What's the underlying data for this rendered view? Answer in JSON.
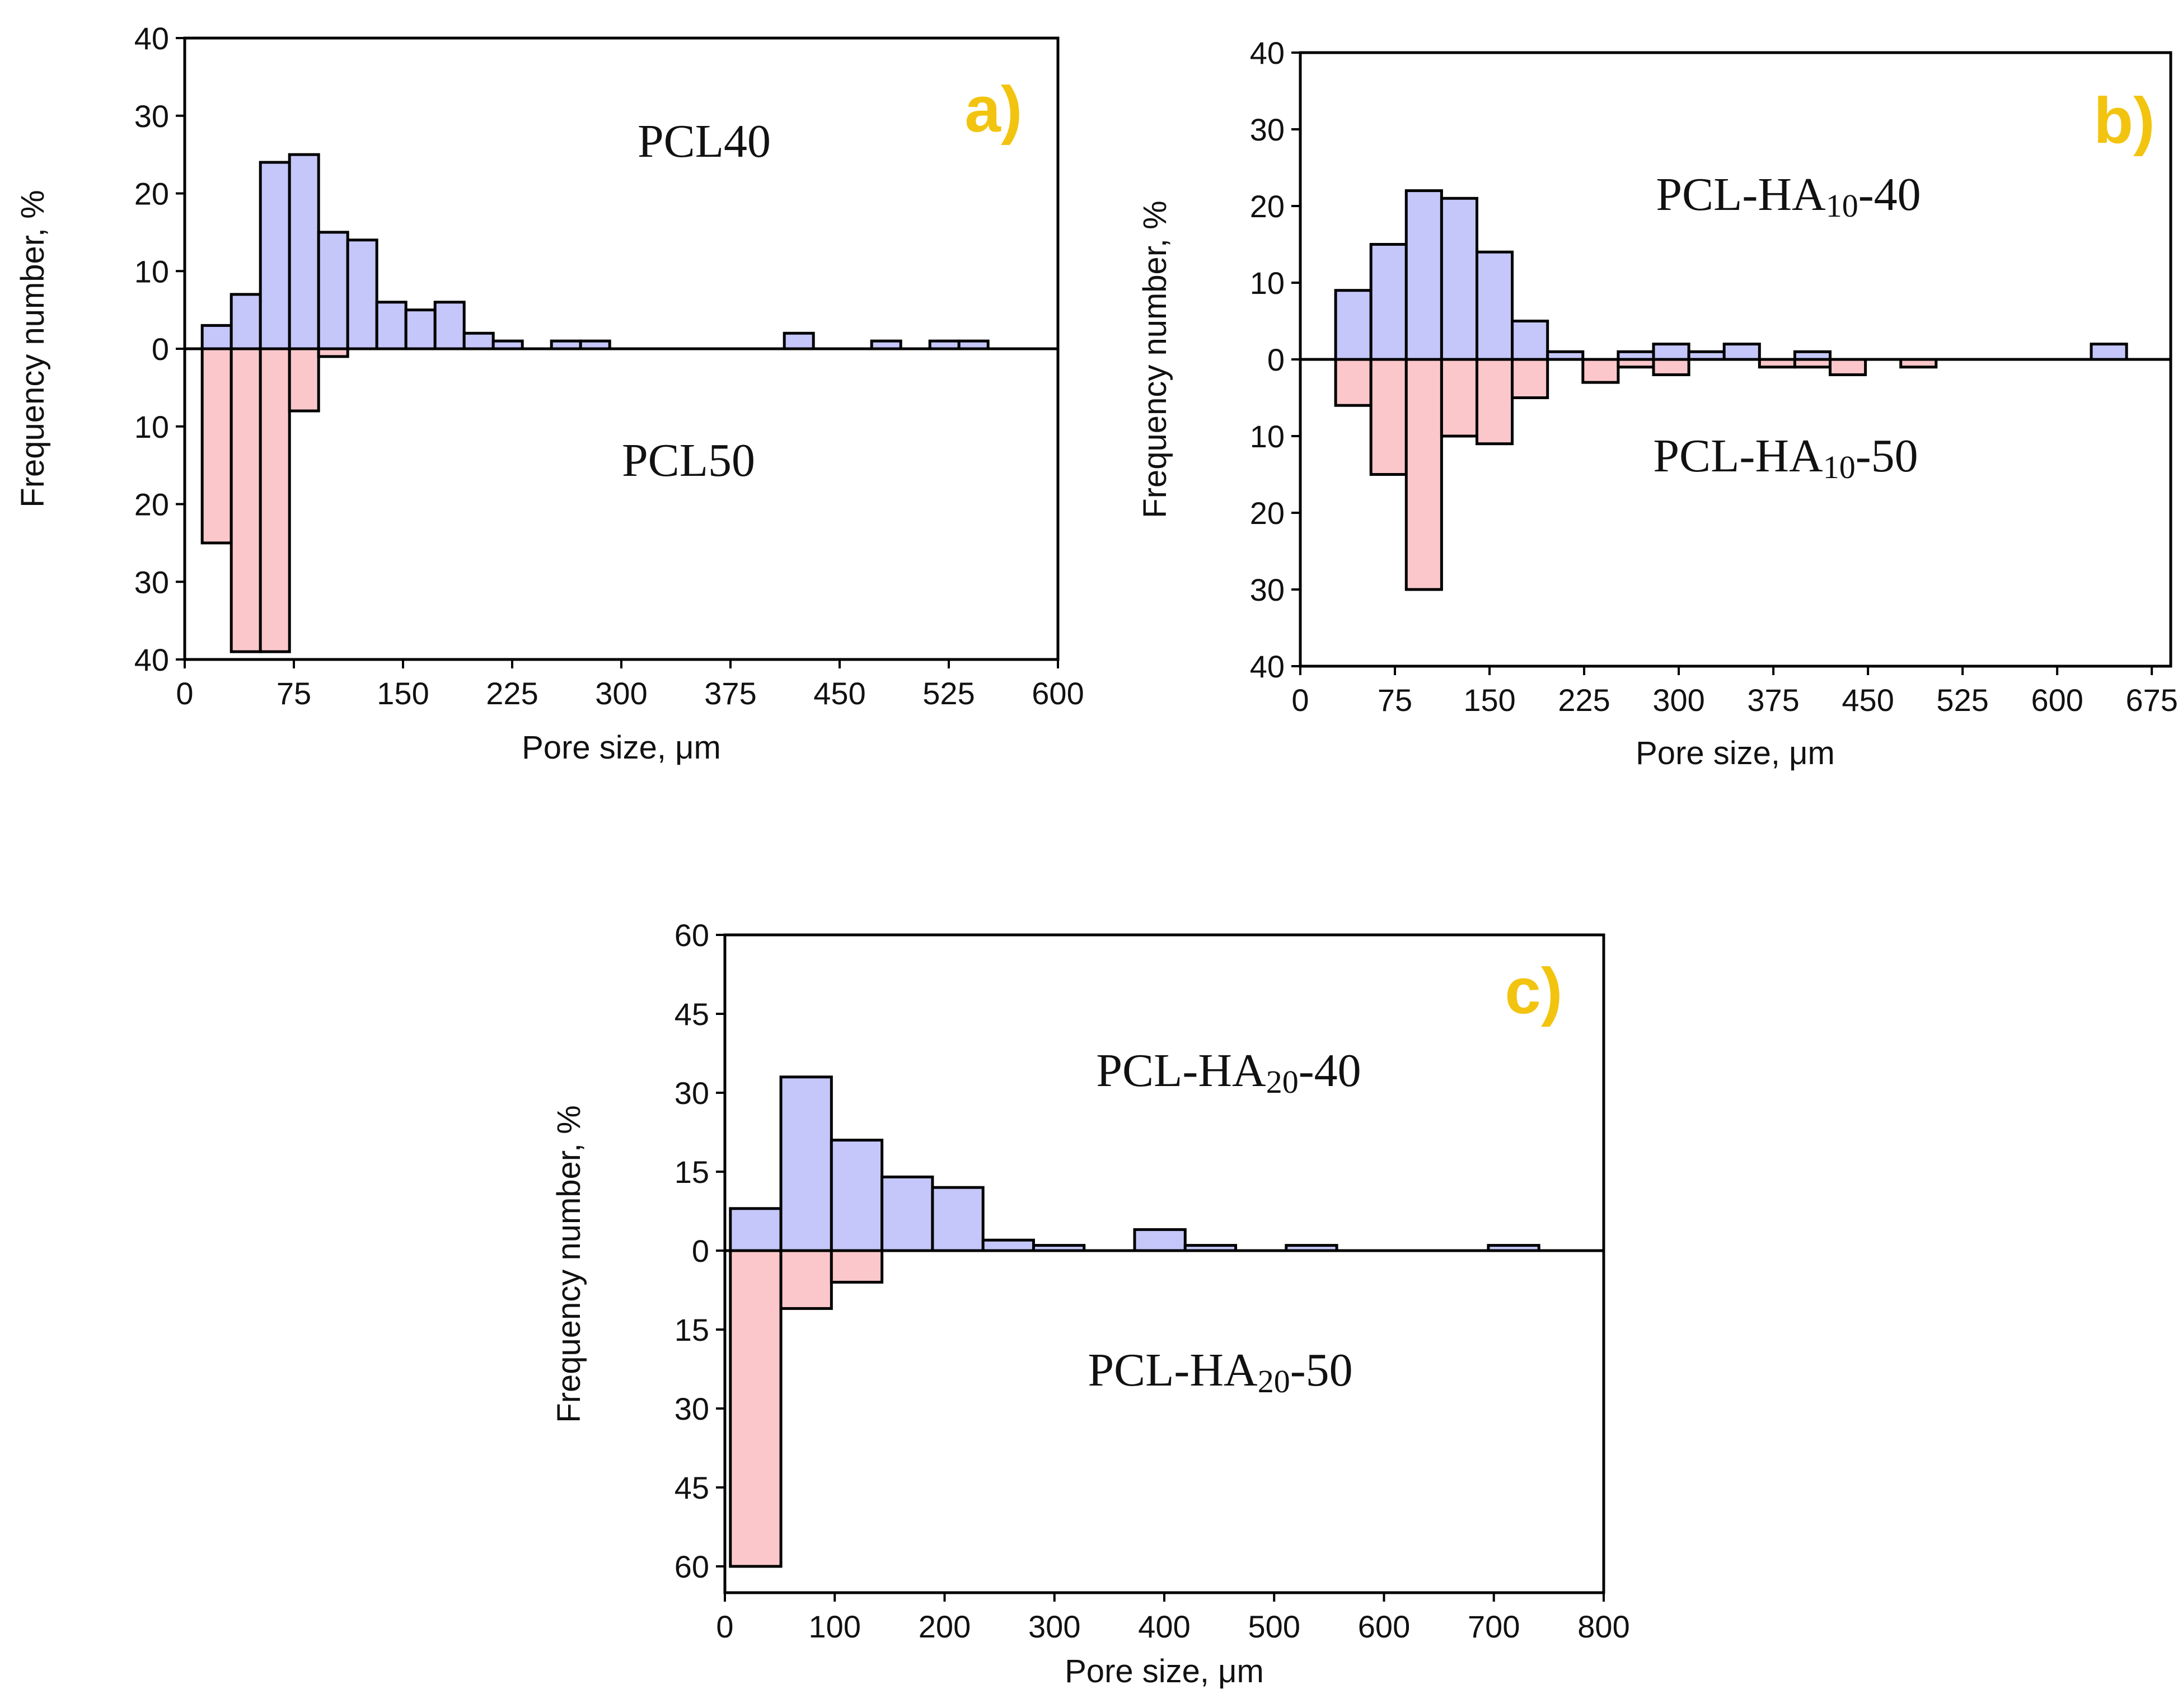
{
  "chart_data": [
    {
      "type": "bar",
      "panel_label": "a)",
      "title": "",
      "xlabel": "Pore size, μm",
      "ylabel": "Frequency number, %",
      "xlim": [
        0,
        600
      ],
      "ylim": [
        -40,
        40
      ],
      "x_ticks": [
        "0",
        "75",
        "150",
        "225",
        "300",
        "375",
        "450",
        "525",
        "600"
      ],
      "y_ticks_up": [
        "40",
        "30",
        "20",
        "10",
        "0"
      ],
      "y_ticks_down": [
        "10",
        "20",
        "30",
        "40"
      ],
      "bin_width": 20,
      "upper_series": {
        "name": "PCL40",
        "label_parts": [
          "PCL40"
        ],
        "color": "#c5c7fa",
        "bins": [
          {
            "x0": 12,
            "value": 3
          },
          {
            "x0": 32,
            "value": 7
          },
          {
            "x0": 52,
            "value": 24
          },
          {
            "x0": 72,
            "value": 25
          },
          {
            "x0": 92,
            "value": 15
          },
          {
            "x0": 112,
            "value": 14
          },
          {
            "x0": 132,
            "value": 6
          },
          {
            "x0": 152,
            "value": 5
          },
          {
            "x0": 172,
            "value": 6
          },
          {
            "x0": 192,
            "value": 2
          },
          {
            "x0": 212,
            "value": 1
          },
          {
            "x0": 252,
            "value": 1
          },
          {
            "x0": 272,
            "value": 1
          },
          {
            "x0": 412,
            "value": 2
          },
          {
            "x0": 472,
            "value": 1
          },
          {
            "x0": 512,
            "value": 1
          },
          {
            "x0": 532,
            "value": 1
          }
        ]
      },
      "lower_series": {
        "name": "PCL50",
        "label_parts": [
          "PCL50"
        ],
        "color": "#fbc7ca",
        "bins": [
          {
            "x0": 12,
            "value": 25
          },
          {
            "x0": 32,
            "value": 39
          },
          {
            "x0": 52,
            "value": 39
          },
          {
            "x0": 72,
            "value": 8
          },
          {
            "x0": 92,
            "value": 1
          }
        ]
      }
    },
    {
      "type": "bar",
      "panel_label": "b)",
      "title": "",
      "xlabel": "Pore size, μm",
      "ylabel": "Frequency number, %",
      "xlim": [
        0,
        690
      ],
      "ylim": [
        -40,
        40
      ],
      "x_ticks": [
        "0",
        "75",
        "150",
        "225",
        "300",
        "375",
        "450",
        "525",
        "600",
        "675"
      ],
      "y_ticks_up": [
        "40",
        "30",
        "20",
        "10",
        "0"
      ],
      "y_ticks_down": [
        "10",
        "20",
        "30",
        "40"
      ],
      "bin_width": 28,
      "upper_series": {
        "name": "PCL-HA10-40",
        "label_parts": [
          "PCL-HA",
          "10",
          "-40"
        ],
        "color": "#c5c7fa",
        "bins": [
          {
            "x0": 28,
            "value": 9
          },
          {
            "x0": 56,
            "value": 15
          },
          {
            "x0": 84,
            "value": 22
          },
          {
            "x0": 112,
            "value": 21
          },
          {
            "x0": 140,
            "value": 14
          },
          {
            "x0": 168,
            "value": 5
          },
          {
            "x0": 196,
            "value": 1
          },
          {
            "x0": 252,
            "value": 1
          },
          {
            "x0": 280,
            "value": 2
          },
          {
            "x0": 308,
            "value": 1
          },
          {
            "x0": 336,
            "value": 2
          },
          {
            "x0": 392,
            "value": 1
          },
          {
            "x0": 627,
            "value": 2
          }
        ]
      },
      "lower_series": {
        "name": "PCL-HA10-50",
        "label_parts": [
          "PCL-HA",
          "10",
          "-50"
        ],
        "color": "#fbc7ca",
        "bins": [
          {
            "x0": 28,
            "value": 6
          },
          {
            "x0": 56,
            "value": 15
          },
          {
            "x0": 84,
            "value": 30
          },
          {
            "x0": 112,
            "value": 10
          },
          {
            "x0": 140,
            "value": 11
          },
          {
            "x0": 168,
            "value": 5
          },
          {
            "x0": 224,
            "value": 3
          },
          {
            "x0": 252,
            "value": 1
          },
          {
            "x0": 280,
            "value": 2
          },
          {
            "x0": 364,
            "value": 1
          },
          {
            "x0": 392,
            "value": 1
          },
          {
            "x0": 420,
            "value": 2
          },
          {
            "x0": 476,
            "value": 1
          }
        ]
      }
    },
    {
      "type": "bar",
      "panel_label": "c)",
      "title": "",
      "xlabel": "Pore size, μm",
      "ylabel": "Frequency number, %",
      "xlim": [
        0,
        800
      ],
      "ylim": [
        -65,
        60
      ],
      "x_ticks": [
        "0",
        "100",
        "200",
        "300",
        "400",
        "500",
        "600",
        "700",
        "800"
      ],
      "y_ticks_up": [
        "60",
        "45",
        "30",
        "15",
        "0"
      ],
      "y_ticks_down": [
        "15",
        "30",
        "45",
        "60"
      ],
      "bin_width": 46,
      "upper_series": {
        "name": "PCL-HA20-40",
        "label_parts": [
          "PCL-HA",
          "20",
          "-40"
        ],
        "color": "#c5c7fa",
        "bins": [
          {
            "x0": 5,
            "value": 8
          },
          {
            "x0": 51,
            "value": 33
          },
          {
            "x0": 97,
            "value": 21
          },
          {
            "x0": 143,
            "value": 14
          },
          {
            "x0": 189,
            "value": 12
          },
          {
            "x0": 235,
            "value": 2
          },
          {
            "x0": 281,
            "value": 1
          },
          {
            "x0": 373,
            "value": 4
          },
          {
            "x0": 419,
            "value": 1
          },
          {
            "x0": 511,
            "value": 1
          },
          {
            "x0": 695,
            "value": 1
          }
        ]
      },
      "lower_series": {
        "name": "PCL-HA20-50",
        "label_parts": [
          "PCL-HA",
          "20",
          "-50"
        ],
        "color": "#fbc7ca",
        "bins": [
          {
            "x0": 5,
            "value": 60
          },
          {
            "x0": 51,
            "value": 11
          },
          {
            "x0": 97,
            "value": 6
          }
        ]
      }
    }
  ]
}
